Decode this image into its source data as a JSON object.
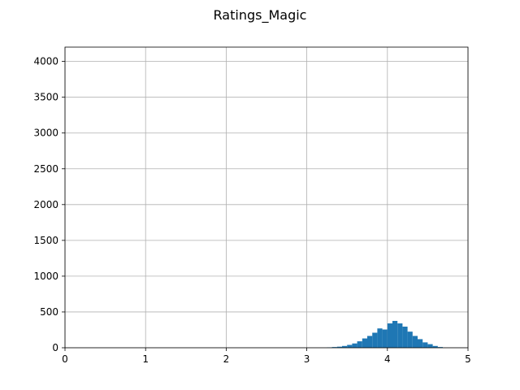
{
  "chart_data": {
    "type": "bar",
    "title": "Ratings_Magic",
    "xlabel": "",
    "ylabel": "",
    "xlim": [
      0,
      5
    ],
    "ylim": [
      0,
      4200
    ],
    "grid": true,
    "bar_color": "#1f77b4",
    "x_ticks": [
      0,
      1,
      2,
      3,
      4,
      5
    ],
    "x_tick_labels": [
      "0",
      "1",
      "2",
      "3",
      "4",
      "5"
    ],
    "y_ticks": [
      0,
      500,
      1000,
      1500,
      2000,
      2500,
      3000,
      3500,
      4000
    ],
    "y_tick_labels": [
      "0",
      "500",
      "1000",
      "1500",
      "2000",
      "2500",
      "3000",
      "3500",
      "4000"
    ],
    "bins": [
      {
        "x0": 3.25,
        "x1": 3.3125,
        "count": 5
      },
      {
        "x0": 3.3125,
        "x1": 3.375,
        "count": 10
      },
      {
        "x0": 3.375,
        "x1": 3.4375,
        "count": 15
      },
      {
        "x0": 3.4375,
        "x1": 3.5,
        "count": 25
      },
      {
        "x0": 3.5,
        "x1": 3.5625,
        "count": 40
      },
      {
        "x0": 3.5625,
        "x1": 3.625,
        "count": 60
      },
      {
        "x0": 3.625,
        "x1": 3.6875,
        "count": 90
      },
      {
        "x0": 3.6875,
        "x1": 3.75,
        "count": 130
      },
      {
        "x0": 3.75,
        "x1": 3.8125,
        "count": 165
      },
      {
        "x0": 3.8125,
        "x1": 3.875,
        "count": 210
      },
      {
        "x0": 3.875,
        "x1": 3.9375,
        "count": 270
      },
      {
        "x0": 3.9375,
        "x1": 4.0,
        "count": 255
      },
      {
        "x0": 4.0,
        "x1": 4.0625,
        "count": 340
      },
      {
        "x0": 4.0625,
        "x1": 4.125,
        "count": 375
      },
      {
        "x0": 4.125,
        "x1": 4.1875,
        "count": 340
      },
      {
        "x0": 4.1875,
        "x1": 4.25,
        "count": 295
      },
      {
        "x0": 4.25,
        "x1": 4.3125,
        "count": 225
      },
      {
        "x0": 4.3125,
        "x1": 4.375,
        "count": 165
      },
      {
        "x0": 4.375,
        "x1": 4.4375,
        "count": 120
      },
      {
        "x0": 4.4375,
        "x1": 4.5,
        "count": 75
      },
      {
        "x0": 4.5,
        "x1": 4.5625,
        "count": 50
      },
      {
        "x0": 4.5625,
        "x1": 4.625,
        "count": 25
      },
      {
        "x0": 4.625,
        "x1": 4.6875,
        "count": 10
      }
    ]
  }
}
